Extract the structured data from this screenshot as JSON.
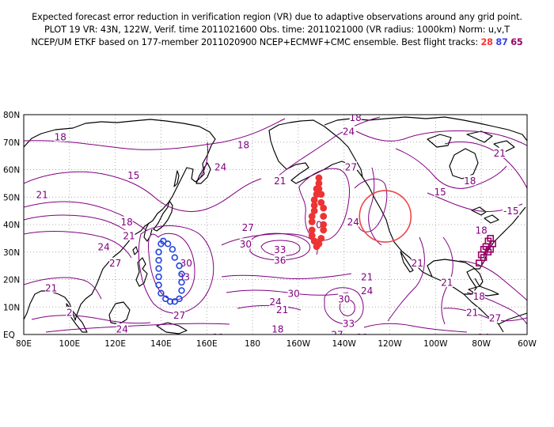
{
  "header": {
    "line1": "Expected forecast error reduction in verification region (VR) due to adaptive observations around any grid point.",
    "line2": "PLOT 19 VR: 43N, 122W, Verif. time 2011021600 Obs. time: 2011021000 (VR radius: 1000km) Norm: u,v,T",
    "line3_text": "NCEP/UM ETKF based on 177-member 2011020900 NCEP+ECMWF+CMC ensemble. Best flight tracks:",
    "tracks": [
      {
        "id": "28",
        "color": "#ff3333"
      },
      {
        "id": "87",
        "color": "#3344ee"
      },
      {
        "id": "65",
        "color": "#990066"
      }
    ]
  },
  "map": {
    "lon_labels": [
      "80E",
      "100E",
      "120E",
      "140E",
      "160E",
      "180",
      "160W",
      "140W",
      "120W",
      "100W",
      "80W",
      "60W"
    ],
    "lat_labels": [
      "EQ",
      "10N",
      "20N",
      "30N",
      "40N",
      "50N",
      "60N",
      "70N",
      "80N"
    ],
    "grid": true,
    "colors": {
      "contour": "#800080",
      "land": "#000000",
      "grid": "#aaaaaa"
    },
    "contour_labels": [
      {
        "text": "18",
        "lon": 96,
        "lat": 72
      },
      {
        "text": "18",
        "lon": 176,
        "lat": 69
      },
      {
        "text": "15",
        "lon": 128,
        "lat": 58
      },
      {
        "text": "24",
        "lon": 166,
        "lat": 61
      },
      {
        "text": "21",
        "lon": 88,
        "lat": 51
      },
      {
        "text": "18",
        "lon": 125,
        "lat": 41
      },
      {
        "text": "21",
        "lon": 126,
        "lat": 36
      },
      {
        "text": "24",
        "lon": 115,
        "lat": 32
      },
      {
        "text": "27",
        "lon": 120,
        "lat": 26
      },
      {
        "text": "21",
        "lon": 92,
        "lat": 17
      },
      {
        "text": "2",
        "lon": 100,
        "lat": 8
      },
      {
        "text": "24",
        "lon": 123,
        "lat": 2
      },
      {
        "text": "24",
        "lon": 131,
        "lat": -2
      },
      {
        "text": "30",
        "lon": 151,
        "lat": 26
      },
      {
        "text": "33",
        "lon": 150,
        "lat": 21
      },
      {
        "text": "27",
        "lon": 148,
        "lat": 7
      },
      {
        "text": "21",
        "lon": 165,
        "lat": -1
      },
      {
        "text": "27",
        "lon": 178,
        "lat": 39
      },
      {
        "text": "30",
        "lon": 177,
        "lat": 33
      },
      {
        "text": "33",
        "lon": 192,
        "lat": 31
      },
      {
        "text": "36",
        "lon": 192,
        "lat": 27
      },
      {
        "text": "30",
        "lon": 198,
        "lat": 15
      },
      {
        "text": "24",
        "lon": 190,
        "lat": 12
      },
      {
        "text": "21",
        "lon": 193,
        "lat": 9
      },
      {
        "text": "18",
        "lon": 191,
        "lat": 2
      },
      {
        "text": "21",
        "lon": 192,
        "lat": 56
      },
      {
        "text": "0",
        "lon": 209,
        "lat": 40
      },
      {
        "text": "18",
        "lon": 225,
        "lat": 79
      },
      {
        "text": "24",
        "lon": 222,
        "lat": 74
      },
      {
        "text": "27",
        "lon": 223,
        "lat": 61
      },
      {
        "text": "24",
        "lon": 224,
        "lat": 41
      },
      {
        "text": "30",
        "lon": 220,
        "lat": 13
      },
      {
        "text": "33",
        "lon": 222,
        "lat": 4
      },
      {
        "text": "27",
        "lon": 217,
        "lat": 0
      },
      {
        "text": "21",
        "lon": 230,
        "lat": 21
      },
      {
        "text": "24",
        "lon": 230,
        "lat": 16
      },
      {
        "text": "21",
        "lon": 228,
        "lat": -1
      },
      {
        "text": "21",
        "lon": 265,
        "lat": 19
      },
      {
        "text": "21",
        "lon": 252,
        "lat": 26
      },
      {
        "text": "15",
        "lon": 262,
        "lat": 52
      },
      {
        "text": "18",
        "lon": 275,
        "lat": 56
      },
      {
        "text": "18",
        "lon": 280,
        "lat": 38
      },
      {
        "text": "21",
        "lon": 288,
        "lat": 66
      },
      {
        "text": "-15",
        "lon": 293,
        "lat": 45
      },
      {
        "text": "18",
        "lon": 279,
        "lat": 14
      },
      {
        "text": "21",
        "lon": 276,
        "lat": 8
      },
      {
        "text": "27",
        "lon": 286,
        "lat": 6
      },
      {
        "text": "24",
        "lon": 281,
        "lat": -1
      }
    ],
    "verification_circle": {
      "lon": 238,
      "lat": 43,
      "radius_deg": 9
    },
    "tracks": [
      {
        "id": "87",
        "color": "#2244dd",
        "shape": "circle",
        "filled": false,
        "points": [
          [
            141,
            34
          ],
          [
            143,
            33
          ],
          [
            145,
            31
          ],
          [
            146,
            28
          ],
          [
            148,
            25
          ],
          [
            149,
            22
          ],
          [
            149,
            19
          ],
          [
            149,
            16
          ],
          [
            148,
            13
          ],
          [
            146,
            12
          ],
          [
            144,
            12
          ],
          [
            142,
            13
          ],
          [
            140,
            15
          ],
          [
            139,
            18
          ],
          [
            139,
            21
          ],
          [
            139,
            24
          ],
          [
            139,
            27
          ],
          [
            139,
            30
          ],
          [
            140,
            33
          ]
        ]
      },
      {
        "id": "28",
        "color": "#ee3333",
        "shape": "circle",
        "filled": true,
        "points": [
          [
            209,
            57
          ],
          [
            209,
            55
          ],
          [
            208,
            53
          ],
          [
            208,
            51
          ],
          [
            207,
            49
          ],
          [
            207,
            47
          ],
          [
            207,
            45
          ],
          [
            206,
            43
          ],
          [
            206,
            41
          ],
          [
            206,
            38
          ],
          [
            206,
            36
          ],
          [
            207,
            34
          ],
          [
            208,
            32
          ],
          [
            209,
            33
          ],
          [
            210,
            35
          ],
          [
            211,
            38
          ],
          [
            211,
            40
          ],
          [
            211,
            43
          ],
          [
            211,
            46
          ],
          [
            210,
            48
          ],
          [
            210,
            51
          ],
          [
            209,
            53
          ]
        ]
      },
      {
        "id": "65",
        "color": "#990066",
        "shape": "square",
        "filled": false,
        "points": [
          [
            279,
            26
          ],
          [
            280,
            29
          ],
          [
            281,
            31
          ],
          [
            282,
            32
          ],
          [
            283,
            34
          ],
          [
            284,
            35
          ],
          [
            285,
            33
          ],
          [
            284,
            31
          ],
          [
            283,
            30
          ],
          [
            281,
            28
          ]
        ]
      }
    ]
  }
}
